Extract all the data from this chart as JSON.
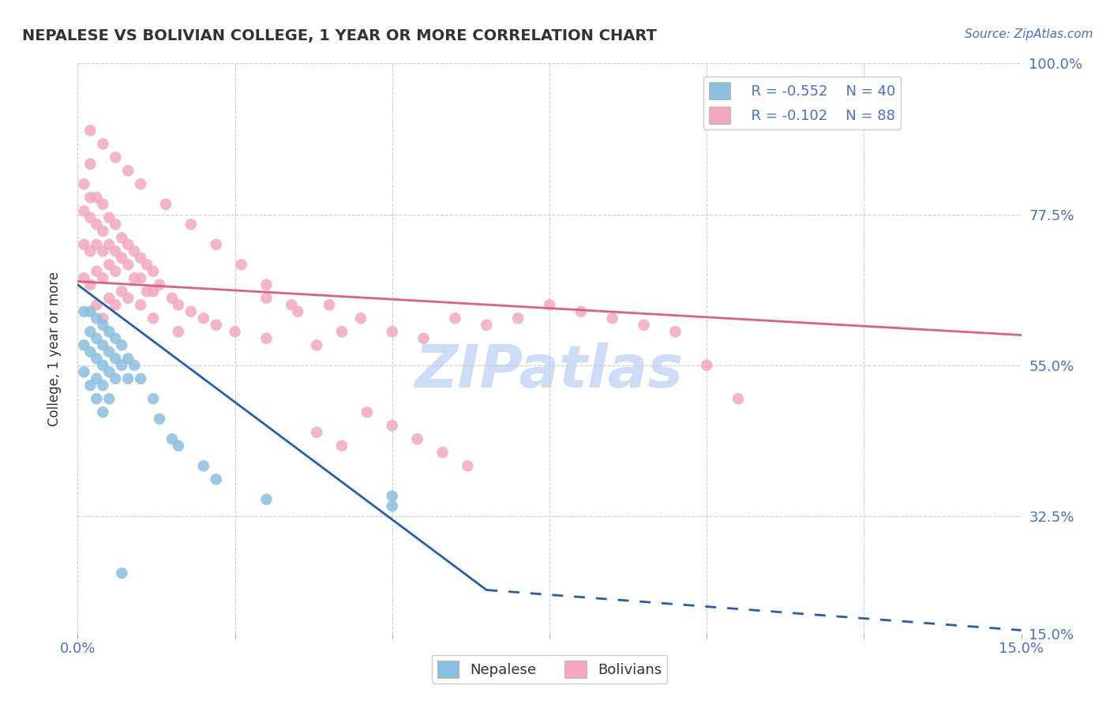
{
  "title": "NEPALESE VS BOLIVIAN COLLEGE, 1 YEAR OR MORE CORRELATION CHART",
  "source_text": "Source: ZipAtlas.com",
  "ylabel": "College, 1 year or more",
  "xlim": [
    0.0,
    0.15
  ],
  "ylim": [
    0.15,
    1.0
  ],
  "xticks": [
    0.0,
    0.025,
    0.05,
    0.075,
    0.1,
    0.125,
    0.15
  ],
  "xticklabels": [
    "0.0%",
    "",
    "",
    "",
    "",
    "",
    "15.0%"
  ],
  "yticks_right": [
    1.0,
    0.775,
    0.55,
    0.325,
    0.15
  ],
  "ytickslabels_right": [
    "100.0%",
    "77.5%",
    "55.0%",
    "32.5%",
    "15.0%"
  ],
  "legend_R_nepalese": "R = -0.552",
  "legend_N_nepalese": "N = 40",
  "legend_R_bolivian": "R = -0.102",
  "legend_N_bolivian": "N = 88",
  "color_nepalese": "#8cbfdf",
  "color_bolivian": "#f4a8bf",
  "color_nepalese_line": "#2060b0",
  "color_bolivian_line": "#e06080",
  "watermark_color": "#ccddf5",
  "nepalese_x": [
    0.001,
    0.001,
    0.001,
    0.002,
    0.002,
    0.002,
    0.002,
    0.003,
    0.003,
    0.003,
    0.003,
    0.003,
    0.004,
    0.004,
    0.004,
    0.004,
    0.004,
    0.005,
    0.005,
    0.005,
    0.005,
    0.006,
    0.006,
    0.006,
    0.007,
    0.007,
    0.008,
    0.008,
    0.009,
    0.01,
    0.012,
    0.013,
    0.015,
    0.016,
    0.02,
    0.022,
    0.03,
    0.05,
    0.05,
    0.007
  ],
  "nepalese_y": [
    0.63,
    0.58,
    0.54,
    0.63,
    0.6,
    0.57,
    0.52,
    0.62,
    0.59,
    0.56,
    0.53,
    0.5,
    0.61,
    0.58,
    0.55,
    0.52,
    0.48,
    0.6,
    0.57,
    0.54,
    0.5,
    0.59,
    0.56,
    0.53,
    0.58,
    0.55,
    0.56,
    0.53,
    0.55,
    0.53,
    0.5,
    0.47,
    0.44,
    0.43,
    0.4,
    0.38,
    0.35,
    0.355,
    0.34,
    0.24
  ],
  "bolivian_x": [
    0.001,
    0.001,
    0.001,
    0.001,
    0.002,
    0.002,
    0.002,
    0.002,
    0.002,
    0.003,
    0.003,
    0.003,
    0.003,
    0.003,
    0.004,
    0.004,
    0.004,
    0.004,
    0.004,
    0.005,
    0.005,
    0.005,
    0.005,
    0.006,
    0.006,
    0.006,
    0.006,
    0.007,
    0.007,
    0.007,
    0.008,
    0.008,
    0.008,
    0.009,
    0.009,
    0.01,
    0.01,
    0.01,
    0.011,
    0.011,
    0.012,
    0.012,
    0.012,
    0.013,
    0.015,
    0.016,
    0.016,
    0.018,
    0.02,
    0.022,
    0.025,
    0.03,
    0.03,
    0.035,
    0.038,
    0.04,
    0.042,
    0.045,
    0.05,
    0.055,
    0.06,
    0.065,
    0.07,
    0.075,
    0.08,
    0.085,
    0.09,
    0.095,
    0.1,
    0.105,
    0.002,
    0.004,
    0.006,
    0.008,
    0.01,
    0.014,
    0.018,
    0.022,
    0.026,
    0.03,
    0.034,
    0.038,
    0.042,
    0.046,
    0.05,
    0.054,
    0.058,
    0.062
  ],
  "bolivian_y": [
    0.82,
    0.78,
    0.73,
    0.68,
    0.85,
    0.8,
    0.77,
    0.72,
    0.67,
    0.8,
    0.76,
    0.73,
    0.69,
    0.64,
    0.79,
    0.75,
    0.72,
    0.68,
    0.62,
    0.77,
    0.73,
    0.7,
    0.65,
    0.76,
    0.72,
    0.69,
    0.64,
    0.74,
    0.71,
    0.66,
    0.73,
    0.7,
    0.65,
    0.72,
    0.68,
    0.71,
    0.68,
    0.64,
    0.7,
    0.66,
    0.69,
    0.66,
    0.62,
    0.67,
    0.65,
    0.64,
    0.6,
    0.63,
    0.62,
    0.61,
    0.6,
    0.65,
    0.59,
    0.63,
    0.58,
    0.64,
    0.6,
    0.62,
    0.6,
    0.59,
    0.62,
    0.61,
    0.62,
    0.64,
    0.63,
    0.62,
    0.61,
    0.6,
    0.55,
    0.5,
    0.9,
    0.88,
    0.86,
    0.84,
    0.82,
    0.79,
    0.76,
    0.73,
    0.7,
    0.67,
    0.64,
    0.45,
    0.43,
    0.48,
    0.46,
    0.44,
    0.42,
    0.4
  ],
  "trend_nepalese_x0": 0.0,
  "trend_nepalese_y0": 0.67,
  "trend_nepalese_x1": 0.065,
  "trend_nepalese_y1": 0.215,
  "trend_nepalese_dash_x0": 0.065,
  "trend_nepalese_dash_y0": 0.215,
  "trend_nepalese_dash_x1": 0.15,
  "trend_nepalese_dash_y1": 0.155,
  "trend_bolivian_x0": 0.0,
  "trend_bolivian_y0": 0.675,
  "trend_bolivian_x1": 0.15,
  "trend_bolivian_y1": 0.595
}
